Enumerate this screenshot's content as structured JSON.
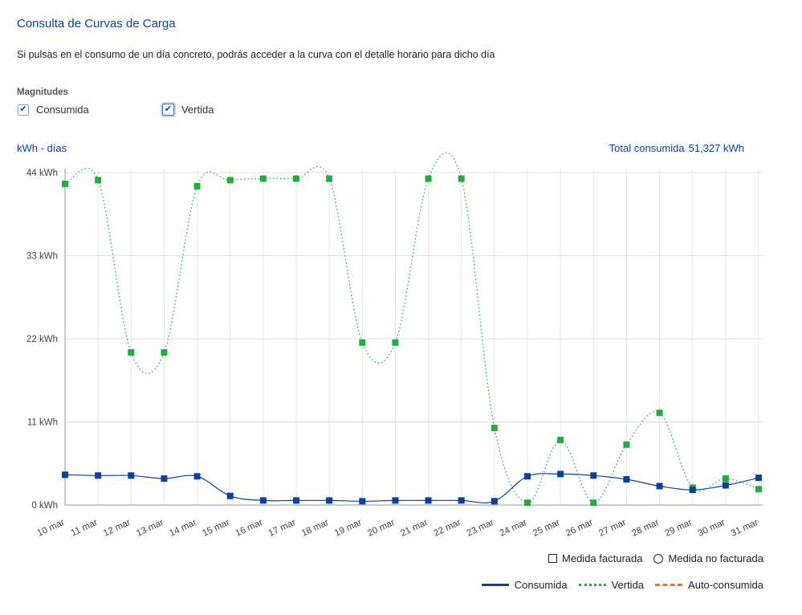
{
  "header": {
    "title": "Consulta de Curvas de Carga",
    "description": "Si pulsas en el consumo de un día concreto, podrás acceder a la curva con el detalle horario para dicho día"
  },
  "magnitudes": {
    "label": "Magnitudes",
    "options": [
      {
        "label": "Consumida",
        "checked": true
      },
      {
        "label": "Vertida",
        "checked": true
      }
    ]
  },
  "summary": {
    "unit_label": "kWh - días",
    "total_label": "Total consumida",
    "total_value": "51,327 kWh"
  },
  "legend": {
    "billed": "Medida facturada",
    "not_billed": "Medida no facturada",
    "consumed": "Consumida",
    "exported": "Vertida",
    "self_consumed": "Auto-consumida"
  },
  "colors": {
    "consumed": "#0a3ea8",
    "exported": "#1fae3e",
    "self_consumed": "#ff6a13",
    "accent": "#0a3ea8"
  },
  "chart_data": {
    "type": "line",
    "categories": [
      "10 mar",
      "11 mar",
      "12 mar",
      "13 mar",
      "14 mar",
      "15 mar",
      "16 mar",
      "17 mar",
      "18 mar",
      "19 mar",
      "20 mar",
      "21 mar",
      "22 mar",
      "23 mar",
      "24 mar",
      "25 mar",
      "26 mar",
      "27 mar",
      "28 mar",
      "29 mar",
      "30 mar",
      "31 mar"
    ],
    "yticks": [
      0,
      11,
      22,
      33,
      44
    ],
    "ytick_labels": [
      "0 kWh",
      "11 kWh",
      "22 kWh",
      "33 kWh",
      "44 kWh"
    ],
    "ylim": [
      0,
      44
    ],
    "grid": true,
    "series": [
      {
        "name": "Consumida",
        "style": "solid",
        "values": [
          4.0,
          3.9,
          3.9,
          3.5,
          3.8,
          1.2,
          0.6,
          0.6,
          0.6,
          0.5,
          0.6,
          0.6,
          0.6,
          0.5,
          3.8,
          4.1,
          3.9,
          3.4,
          2.5,
          2.0,
          2.6,
          3.6
        ]
      },
      {
        "name": "Vertida",
        "style": "dotted",
        "values": [
          42.5,
          43.0,
          20.2,
          20.2,
          42.2,
          43.0,
          43.2,
          43.2,
          43.2,
          21.5,
          21.5,
          43.2,
          43.2,
          10.2,
          0.3,
          8.6,
          0.3,
          8.0,
          12.2,
          2.3,
          3.5,
          2.1
        ]
      }
    ],
    "xlabel": "",
    "ylabel": ""
  }
}
